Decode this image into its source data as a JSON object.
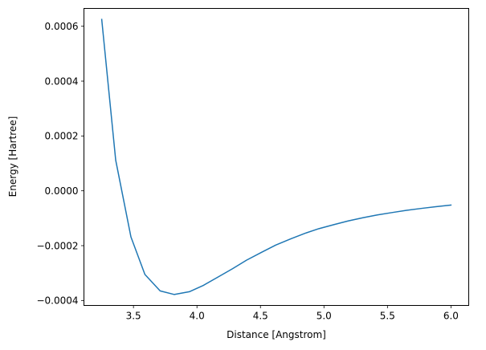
{
  "chart_data": {
    "type": "line",
    "title": "",
    "xlabel": "Distance [Angstrom]",
    "ylabel": "Energy [Hartree]",
    "xlim": [
      3.11,
      6.14
    ],
    "ylim": [
      -0.000418,
      0.000665
    ],
    "x_ticks": [
      {
        "value": 3.5,
        "label": "3.5"
      },
      {
        "value": 4.0,
        "label": "4.0"
      },
      {
        "value": 4.5,
        "label": "4.5"
      },
      {
        "value": 5.0,
        "label": "5.0"
      },
      {
        "value": 5.5,
        "label": "5.5"
      },
      {
        "value": 6.0,
        "label": "6.0"
      }
    ],
    "y_ticks": [
      {
        "value": -0.0004,
        "label": "−0.0004"
      },
      {
        "value": -0.0002,
        "label": "−0.0002"
      },
      {
        "value": 0.0,
        "label": "0.0000"
      },
      {
        "value": 0.0002,
        "label": "0.0002"
      },
      {
        "value": 0.0004,
        "label": "0.0004"
      },
      {
        "value": 0.0006,
        "label": "0.0006"
      }
    ],
    "grid": false,
    "legend": "none",
    "color": "#1f77b4",
    "series": [
      {
        "x": [
          3.25,
          3.36,
          3.48,
          3.59,
          3.71,
          3.82,
          3.94,
          4.05,
          4.16,
          4.28,
          4.39,
          4.51,
          4.62,
          4.74,
          4.85,
          4.96,
          5.08,
          5.19,
          5.31,
          5.42,
          5.54,
          5.65,
          5.77,
          5.88,
          6.0
        ],
        "y": [
          0.000625,
          0.000112,
          -0.000168,
          -0.000305,
          -0.000365,
          -0.000378,
          -0.000368,
          -0.000345,
          -0.000316,
          -0.000284,
          -0.000253,
          -0.000224,
          -0.000198,
          -0.000175,
          -0.000155,
          -0.000138,
          -0.000123,
          -0.00011,
          -9.8e-05,
          -8.8e-05,
          -7.9e-05,
          -7.1e-05,
          -6.4e-05,
          -5.8e-05,
          -5.2e-05
        ]
      }
    ]
  }
}
